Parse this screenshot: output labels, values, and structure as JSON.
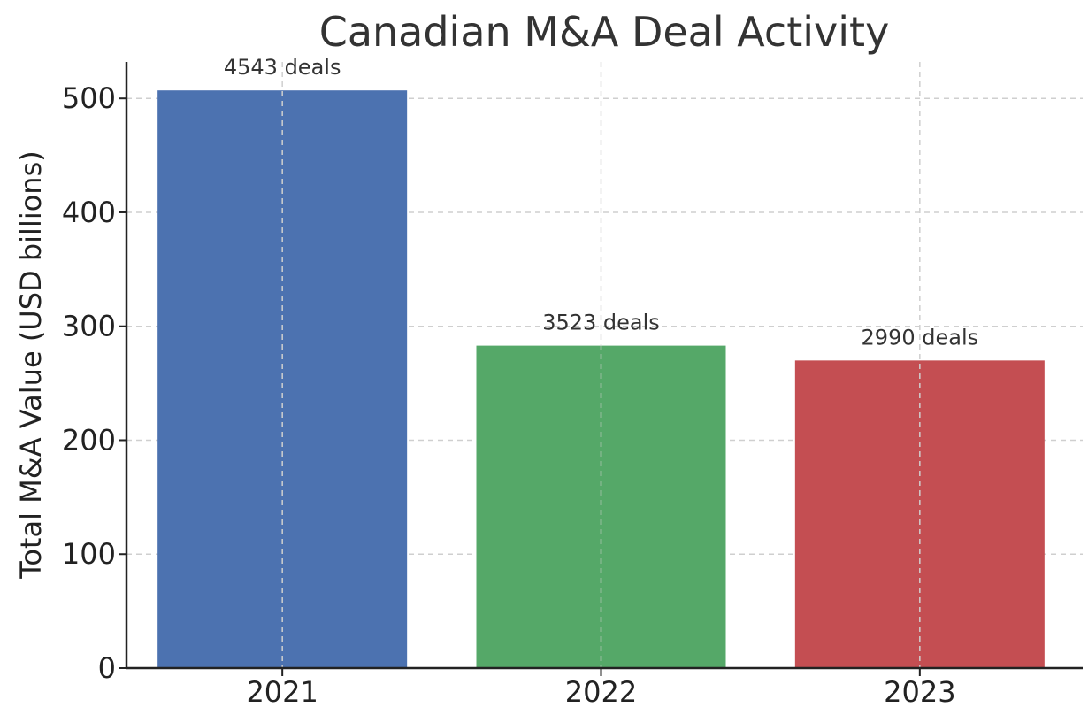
{
  "chart_data": {
    "type": "bar",
    "title": "Canadian M&A Deal Activity",
    "xlabel": "",
    "ylabel": "Total M&A Value (USD billions)",
    "categories": [
      "2021",
      "2022",
      "2023"
    ],
    "values": [
      507,
      283,
      270
    ],
    "data_labels": [
      "4543 deals",
      "3523 deals",
      "2990 deals"
    ],
    "bar_colors": [
      "#4c72b0",
      "#55a868",
      "#c44e52"
    ],
    "ylim": [
      0,
      532
    ],
    "y_ticks": [
      0,
      100,
      200,
      300,
      400,
      500
    ],
    "grid": true,
    "legend": "none"
  }
}
